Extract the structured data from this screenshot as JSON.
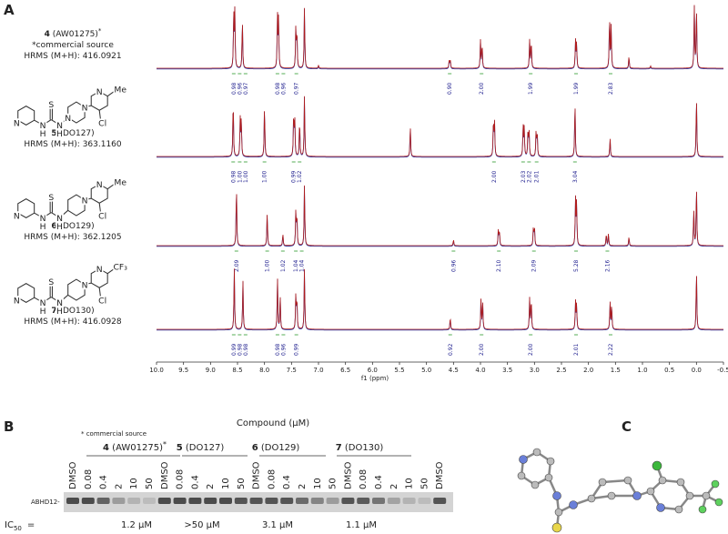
{
  "panel_a": {
    "label": "A",
    "compounds": [
      {
        "number": "4",
        "code": "(AW01275)",
        "mark": "*",
        "note": "*commercial source",
        "hrms": "HRMS (M+H): 416.0921",
        "integrals": [
          "0.98",
          "0.96",
          "0.97",
          "0.98",
          "0.96",
          "0.97",
          "0.90",
          "2.00",
          "1.99",
          "1.99",
          "2.83"
        ]
      },
      {
        "number": "5",
        "code": "(DO127)",
        "hrms": "HRMS (M+H): 363.1160",
        "structure": [
          "N",
          "N",
          "H",
          "S",
          "N",
          "H",
          "N",
          "N",
          "N",
          "Cl",
          "Me"
        ],
        "integrals": [
          "0.98",
          "1.00",
          "1.00",
          "1.00",
          "0.99",
          "1.02",
          "2.00",
          "2.03",
          "2.02",
          "2.01",
          "3.04"
        ]
      },
      {
        "number": "6",
        "code": "(DO129)",
        "hrms": "HRMS (M+H): 362.1205",
        "structure": [
          "N",
          "N",
          "H",
          "S",
          "N",
          "H",
          "N",
          "N",
          "Cl",
          "Me"
        ],
        "integrals": [
          "2.09",
          "1.00",
          "1.02",
          "1.04",
          "1.04",
          "0.96",
          "2.10",
          "2.09",
          "5.28",
          "2.16"
        ]
      },
      {
        "number": "7",
        "code": "(DO130)",
        "hrms": "HRMS (M+H): 416.0928",
        "structure": [
          "N",
          "N",
          "H",
          "S",
          "N",
          "H",
          "N",
          "N",
          "Cl",
          "CF₃"
        ],
        "integrals": [
          "0.99",
          "0.98",
          "0.98",
          "0.98",
          "0.96",
          "0.99",
          "0.92",
          "2.00",
          "2.00",
          "2.01",
          "2.22"
        ]
      }
    ],
    "axis_ticks": [
      "10.0",
      "9.5",
      "9.0",
      "8.5",
      "8.0",
      "7.5",
      "7.0",
      "6.5",
      "6.0",
      "5.5",
      "5.0",
      "4.5",
      "4.0",
      "3.5",
      "3.0",
      "2.5",
      "2.0",
      "1.5",
      "1.0",
      "0.5",
      "0.0",
      "-0.5"
    ],
    "axis_title": "f1 (ppm)"
  },
  "panel_b": {
    "label": "B",
    "title": "Compound (µM)",
    "note": "* commercial source",
    "groups": [
      {
        "number": "4",
        "code": "(AW01275)",
        "mark": "*",
        "ic50": "1.2 µM"
      },
      {
        "number": "5",
        "code": "(DO127)",
        "ic50": ">50 µM"
      },
      {
        "number": "6",
        "code": "(DO129)",
        "ic50": "3.1 µM"
      },
      {
        "number": "7",
        "code": "(DO130)",
        "ic50": "1.1 µM"
      }
    ],
    "lanes": [
      "DMSO",
      "0.08",
      "0.4",
      "2",
      "10",
      "50",
      "DMSO",
      "0.08",
      "0.4",
      "2",
      "10",
      "50",
      "DMSO",
      "0.08",
      "0.4",
      "2",
      "10",
      "50",
      "DMSO",
      "0.08",
      "0.4",
      "2",
      "10",
      "50",
      "DMSO"
    ],
    "band_label": "ABHD12-",
    "ic50_label": {
      "text": "IC",
      "subscript": "50",
      "suffix": "="
    }
  },
  "panel_c": {
    "label": "C"
  }
}
